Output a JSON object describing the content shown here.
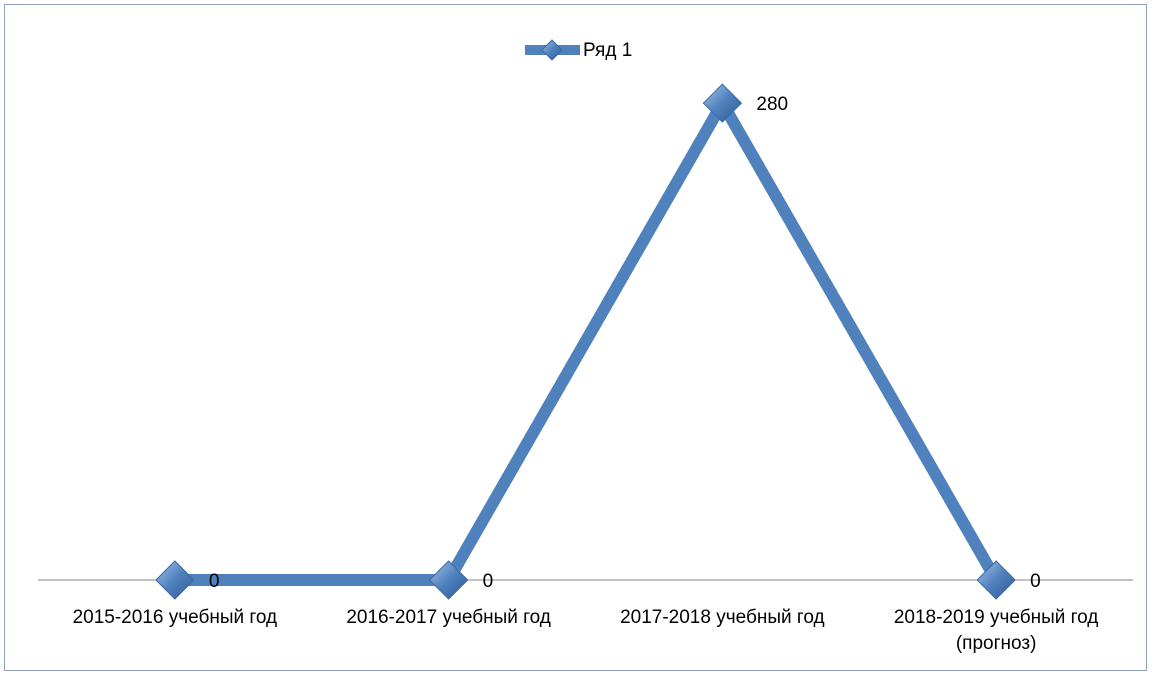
{
  "chart_data": {
    "type": "line",
    "categories": [
      "2015-2016 учебный год",
      "2016-2017 учебный год",
      "2017-2018 учебный год",
      "2018-2019 учебный год (прогноз)"
    ],
    "series": [
      {
        "name": "Ряд 1",
        "color": "#4f81bd",
        "values": [
          0,
          0,
          280,
          0
        ]
      }
    ],
    "ylim": [
      0,
      300
    ],
    "legend": "top"
  }
}
